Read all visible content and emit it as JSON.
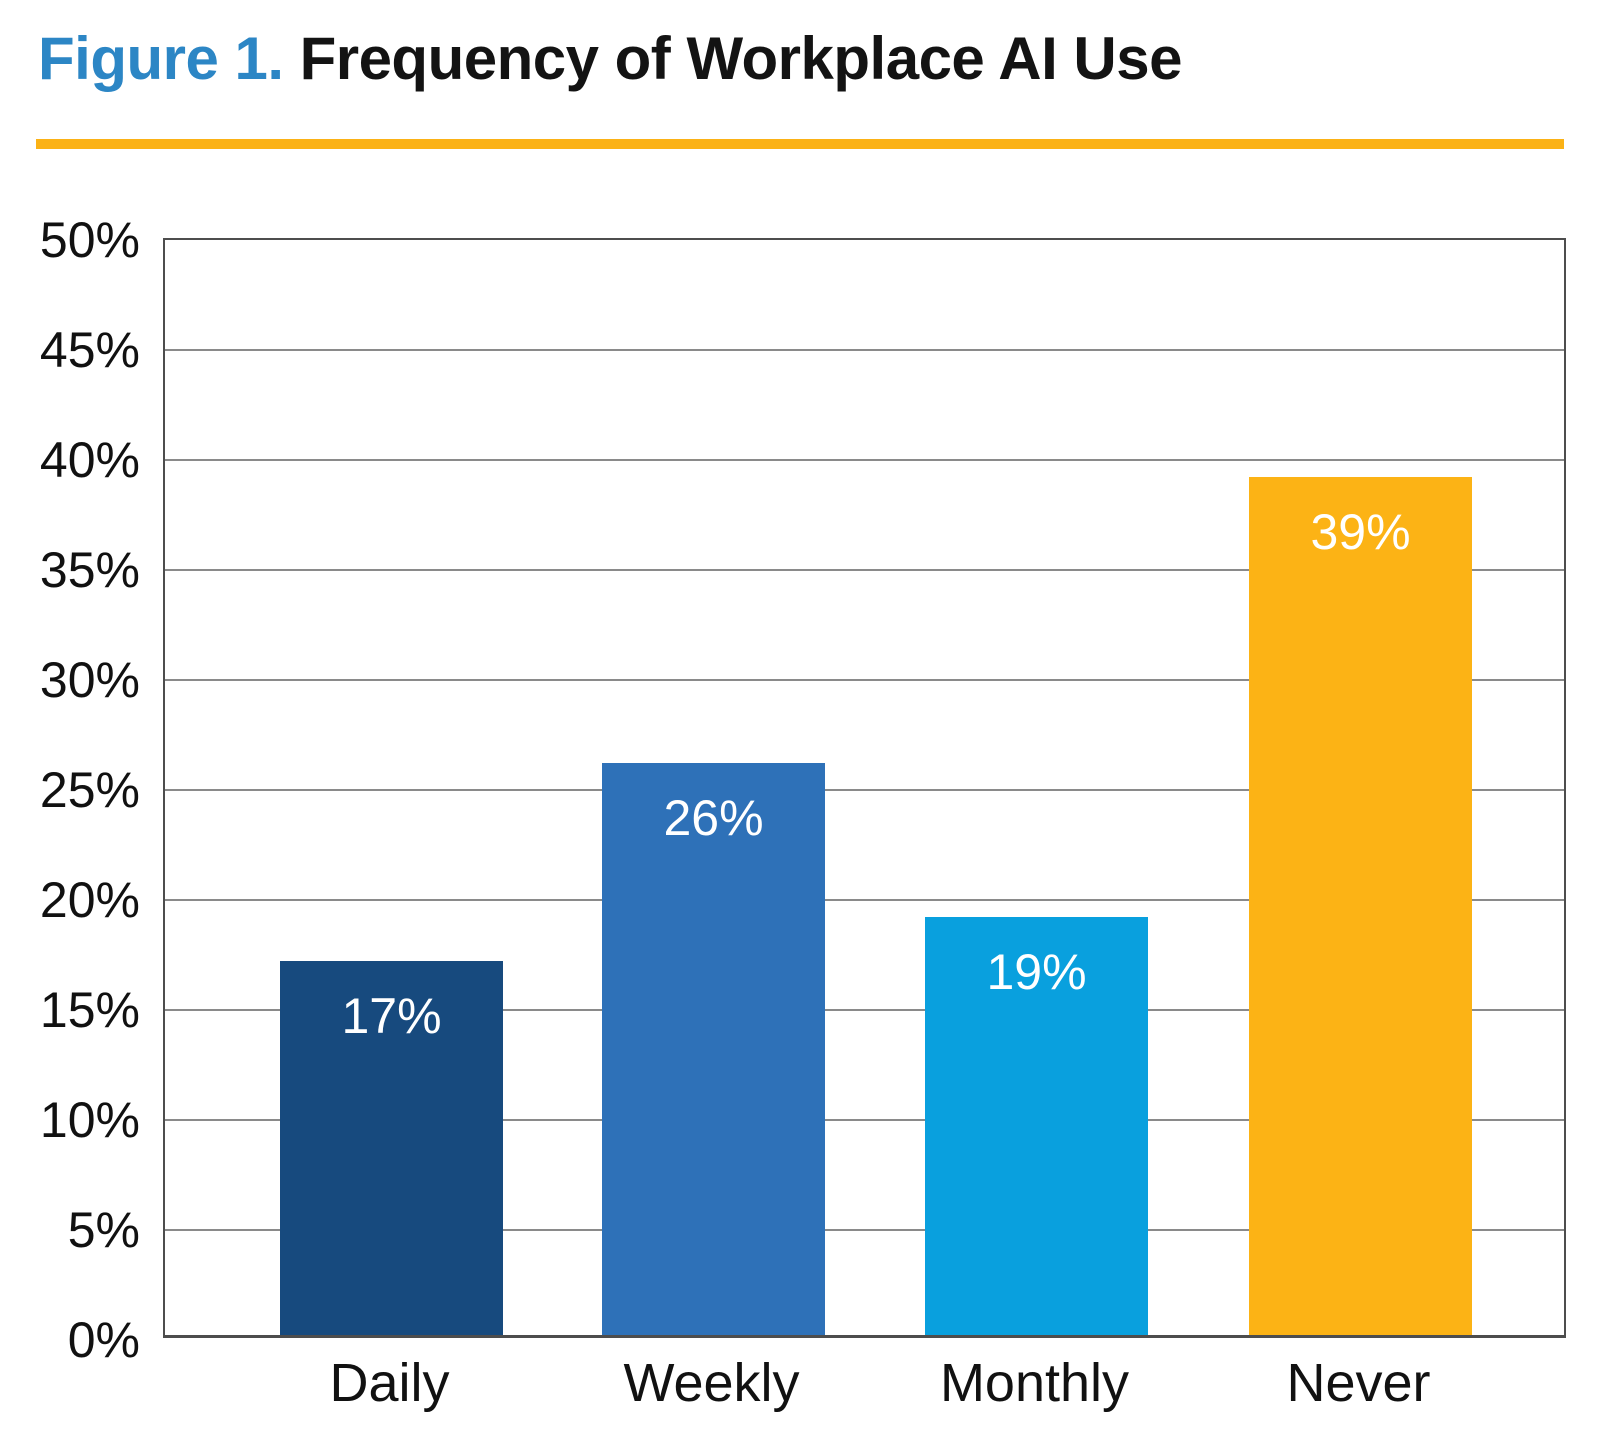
{
  "figure": {
    "label": "Figure 1.",
    "title": "Frequency of Workplace AI Use"
  },
  "colors": {
    "figure_label_blue": "#2C86C5",
    "title_black": "#131313",
    "divider_orange": "#FBB216",
    "grid_line": "#8a8a8a",
    "plot_border": "#4D4D4D",
    "bar_label_white": "#FFFFFF"
  },
  "chart_data": {
    "type": "bar",
    "title": "Frequency of Workplace AI Use",
    "categories": [
      "Daily",
      "Weekly",
      "Monthly",
      "Never"
    ],
    "values": [
      17,
      26,
      19,
      39
    ],
    "value_labels": [
      "17%",
      "26%",
      "19%",
      "39%"
    ],
    "bar_colors": [
      "#174A7E",
      "#2E71B8",
      "#09A0DE",
      "#FCB315"
    ],
    "ylim": [
      0,
      50
    ],
    "ytick_step": 5,
    "ytick_labels": [
      "0%",
      "5%",
      "10%",
      "15%",
      "20%",
      "25%",
      "30%",
      "35%",
      "40%",
      "45%",
      "50%"
    ],
    "xlabel": "",
    "ylabel": "",
    "grid": "horizontal",
    "legend": "none"
  }
}
